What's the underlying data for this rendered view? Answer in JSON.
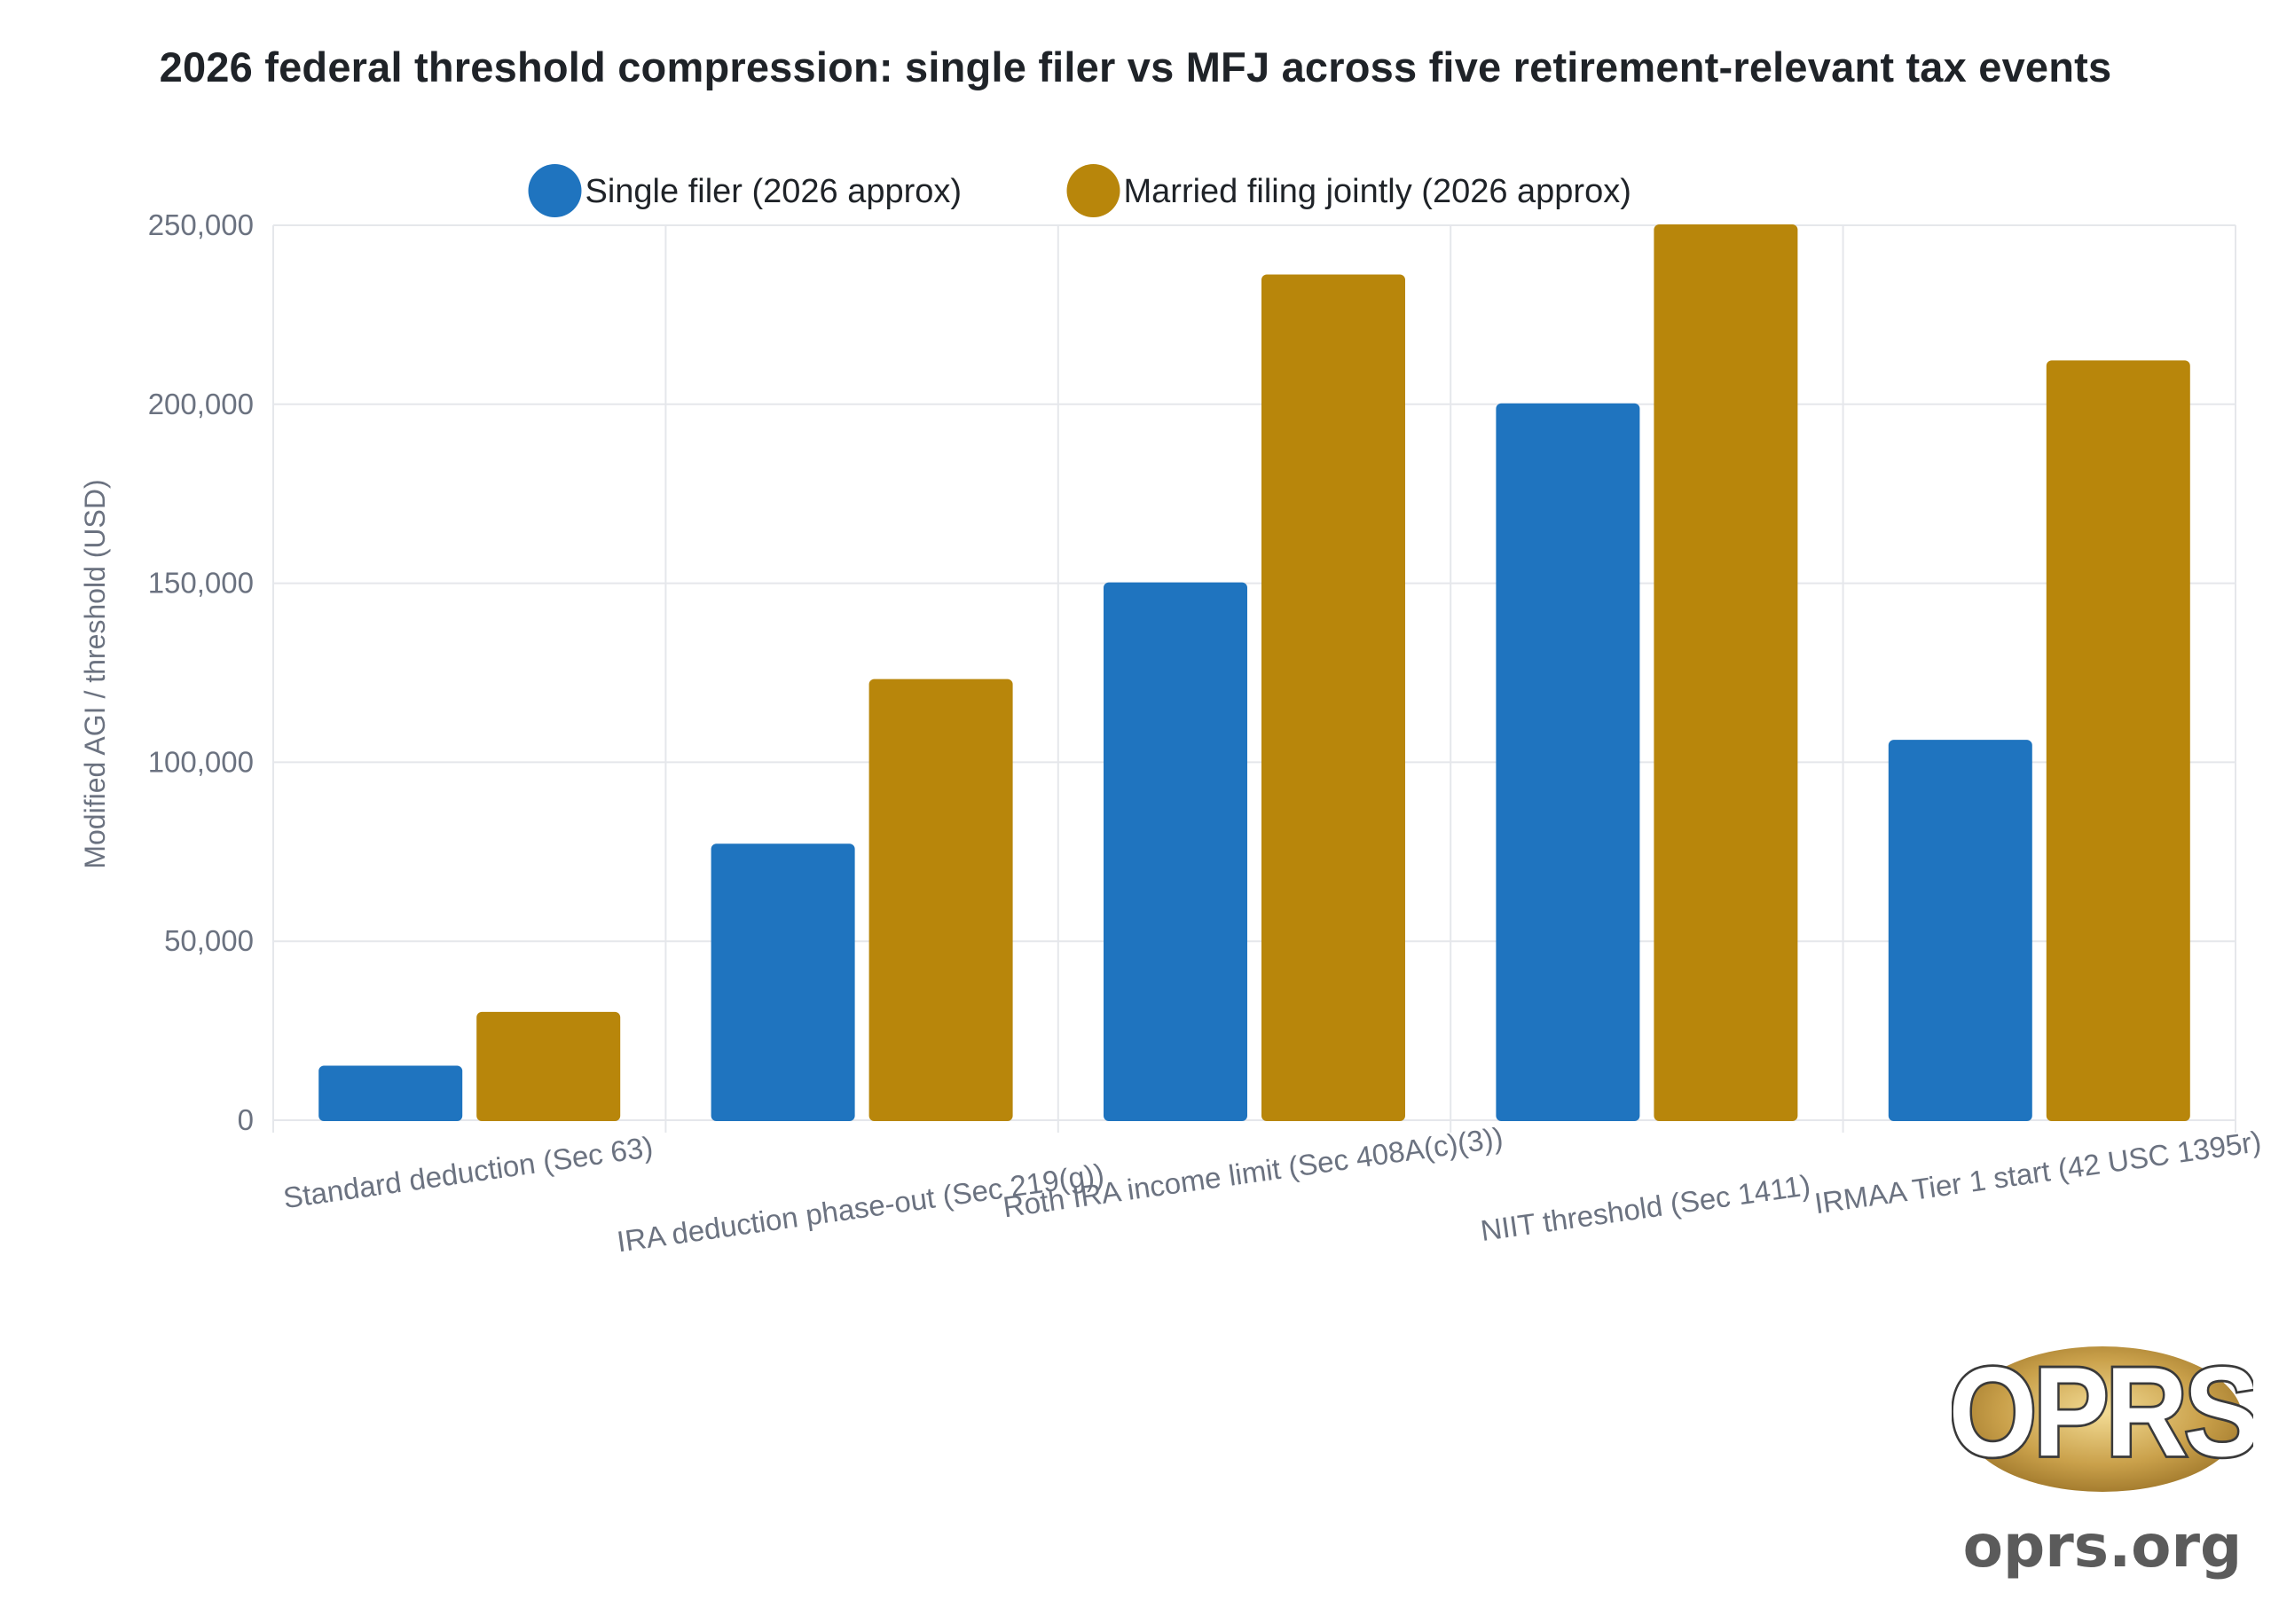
{
  "colors": {
    "single": "#1f74bf",
    "mfj": "#b8860b",
    "grid": "#e5e7eb",
    "text": "#1f2328",
    "muted": "#6b7280"
  },
  "chart_data": {
    "type": "bar",
    "title": "2026 federal threshold compression: single filer vs MFJ across five retirement-relevant tax events",
    "xlabel": "",
    "ylabel": "Modified AGI / threshold (USD)",
    "ylim": [
      0,
      250000
    ],
    "yticks": [
      "0",
      "50,000",
      "100,000",
      "150,000",
      "200,000",
      "250,000"
    ],
    "grid": true,
    "legend": "top-center",
    "categories": [
      "Standard deduction (Sec 63)",
      "IRA deduction phase-out (Sec 219(g))",
      "Roth IRA income limit (Sec 408A(c)(3))",
      "NIIT threshold (Sec 1411)",
      "IRMAA Tier 1 start (42 USC 1395r)"
    ],
    "series": [
      {
        "name": "Single filer (2026 approx)",
        "color": "#1f74bf",
        "values": [
          15000,
          77000,
          150000,
          200000,
          106000
        ]
      },
      {
        "name": "Married filing jointly (2026 approx)",
        "color": "#b8860b",
        "values": [
          30000,
          123000,
          236000,
          250000,
          212000
        ]
      }
    ]
  },
  "branding": {
    "logo_text": "OPRS",
    "url": "oprs.org"
  }
}
